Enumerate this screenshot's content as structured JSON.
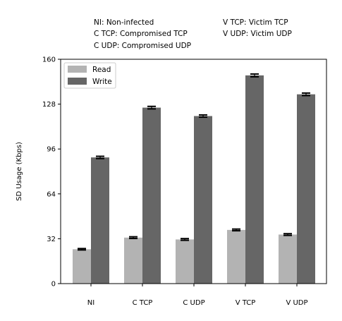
{
  "chart_data": {
    "type": "bar",
    "notes": [
      "NI: Non-infected",
      "C TCP: Compromised TCP",
      "C UDP: Compromised UDP",
      "V TCP: Victim TCP",
      "V UDP: Victim UDP"
    ],
    "ylabel": "SD Usage (Kbps)",
    "xlabel": "",
    "categories": [
      "NI",
      "C TCP",
      "C UDP",
      "V TCP",
      "V UDP"
    ],
    "ylim": [
      0,
      160
    ],
    "yticks": [
      0,
      32,
      64,
      96,
      128,
      160
    ],
    "legend_position": "top-left",
    "grid": false,
    "series": [
      {
        "name": "Read",
        "color": "#b3b3b3",
        "values": [
          24.5,
          32.8,
          31.5,
          38.3,
          35.0
        ],
        "errors": [
          0.5,
          0.6,
          0.6,
          0.6,
          0.6
        ]
      },
      {
        "name": "Write",
        "color": "#666666",
        "values": [
          90.0,
          125.5,
          119.5,
          148.5,
          135.0
        ],
        "errors": [
          0.8,
          0.9,
          0.8,
          1.0,
          0.9
        ]
      }
    ]
  }
}
